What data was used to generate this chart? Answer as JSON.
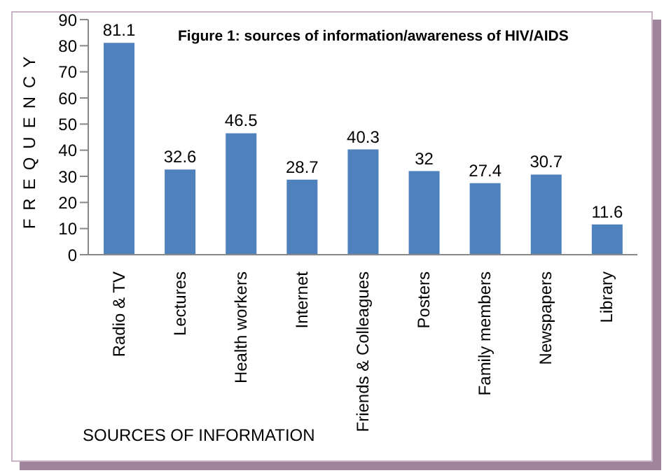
{
  "chart_data": {
    "type": "bar",
    "title": "Figure 1: sources of information/awareness of HIV/AIDS",
    "xlabel": "SOURCES OF INFORMATION",
    "ylabel": "FREQUENCY",
    "categories": [
      "Radio & TV",
      "Lectures",
      "Health workers",
      "Internet",
      "Friends & Colleagues",
      "Posters",
      "Family members",
      "Newspapers",
      "Library"
    ],
    "values": [
      81.1,
      32.6,
      46.5,
      28.7,
      40.3,
      32,
      27.4,
      30.7,
      11.6
    ],
    "color": "#4f81bd",
    "ylim": [
      0,
      90
    ],
    "yticks": [
      0,
      10,
      20,
      30,
      40,
      50,
      60,
      70,
      80,
      90
    ],
    "data_labels": true,
    "grid": false
  }
}
